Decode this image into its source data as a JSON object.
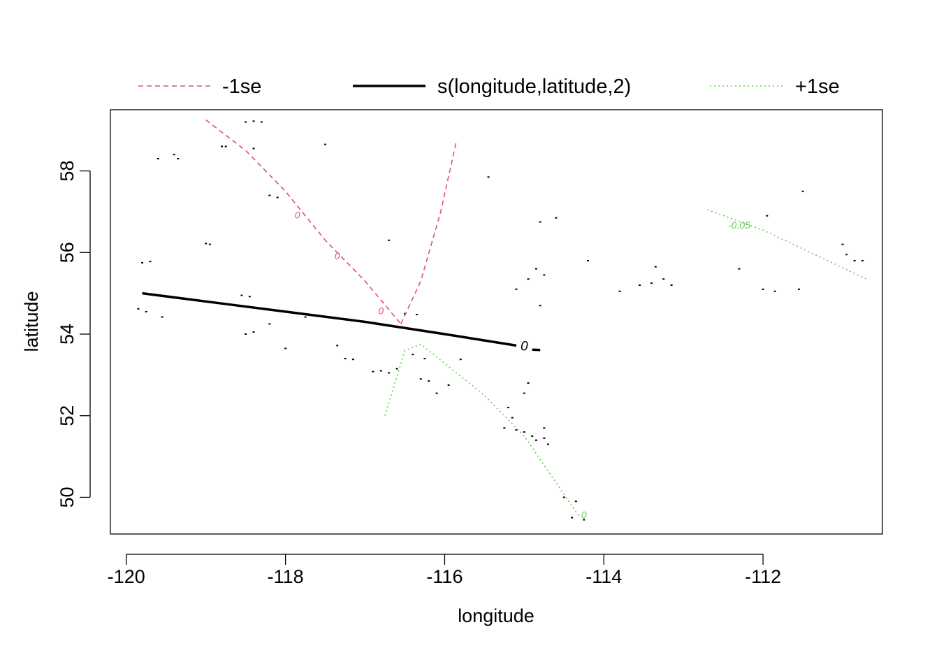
{
  "chart_data": {
    "type": "contour",
    "title": "",
    "xlabel": "longitude",
    "ylabel": "latitude",
    "xlim": [
      -120.2,
      -110.5
    ],
    "ylim": [
      49.1,
      59.5
    ],
    "x_ticks": [
      -120,
      -118,
      -116,
      -114,
      -112
    ],
    "x_tick_labels": [
      "-120",
      "-118",
      "-116",
      "-114",
      "-112"
    ],
    "y_ticks": [
      50,
      52,
      54,
      56,
      58
    ],
    "y_tick_labels": [
      "50",
      "52",
      "54",
      "56",
      "58"
    ],
    "legend": {
      "position": "top",
      "entries": [
        {
          "label": "-1se",
          "color": "#DF536B",
          "dash": "dashed"
        },
        {
          "label": "s(longitude,latitude,2)",
          "color": "#000000",
          "dash": "solid"
        },
        {
          "label": "+1se",
          "color": "#61D04F",
          "dash": "dotted"
        }
      ]
    },
    "series": [
      {
        "name": "-1se",
        "color": "#DF536B",
        "dash": "dashed",
        "lines": [
          {
            "points": [
              [
                -119.0,
                59.25
              ],
              [
                -118.5,
                58.5
              ],
              [
                -118.0,
                57.5
              ],
              [
                -117.5,
                56.3
              ],
              [
                -117.0,
                55.3
              ],
              [
                -116.55,
                54.25
              ]
            ],
            "level_labels": [
              {
                "label": "0",
                "x": -117.85,
                "y": 56.9
              },
              {
                "label": "0",
                "x": -117.35,
                "y": 55.9
              },
              {
                "label": "0",
                "x": -116.8,
                "y": 54.55
              }
            ]
          },
          {
            "points": [
              [
                -116.55,
                54.25
              ],
              [
                -116.3,
                55.3
              ],
              [
                -116.05,
                57.0
              ],
              [
                -115.85,
                58.75
              ]
            ],
            "level_labels": []
          },
          {
            "points": [
              [
                -116.0,
                55.3
              ]
            ],
            "level_labels": []
          }
        ]
      },
      {
        "name": "s(longitude,latitude,2)",
        "color": "#000000",
        "dash": "solid",
        "lines": [
          {
            "points": [
              [
                -119.8,
                55.0
              ],
              [
                -119.0,
                54.8
              ],
              [
                -118.0,
                54.55
              ],
              [
                -117.0,
                54.3
              ],
              [
                -116.0,
                54.0
              ],
              [
                -115.1,
                53.72
              ]
            ],
            "level_labels": [
              {
                "label": "0",
                "x": -115.0,
                "y": 53.68
              }
            ]
          },
          {
            "points": [
              [
                -114.9,
                53.62
              ],
              [
                -114.8,
                53.61
              ]
            ],
            "level_labels": []
          }
        ]
      },
      {
        "name": "+1se",
        "color": "#61D04F",
        "dash": "dotted",
        "lines": [
          {
            "points": [
              [
                -116.75,
                52.0
              ],
              [
                -116.5,
                53.6
              ],
              [
                -116.3,
                53.75
              ],
              [
                -115.5,
                52.5
              ],
              [
                -115.0,
                51.5
              ],
              [
                -114.3,
                49.5
              ]
            ],
            "level_labels": [
              {
                "label": "0",
                "x": -114.25,
                "y": 49.55
              }
            ]
          },
          {
            "points": [
              [
                -112.7,
                57.05
              ],
              [
                -112.0,
                56.55
              ],
              [
                -110.7,
                55.35
              ]
            ],
            "level_labels": [
              {
                "label": "-0.05",
                "x": -112.3,
                "y": 56.65
              }
            ]
          }
        ]
      }
    ],
    "points": [
      [
        -119.8,
        55.75
      ],
      [
        -119.7,
        55.78
      ],
      [
        -119.85,
        54.62
      ],
      [
        -119.75,
        54.55
      ],
      [
        -119.55,
        54.42
      ],
      [
        -119.6,
        58.3
      ],
      [
        -119.4,
        58.4
      ],
      [
        -119.35,
        58.3
      ],
      [
        -119.0,
        56.22
      ],
      [
        -118.95,
        56.2
      ],
      [
        -118.75,
        58.6
      ],
      [
        -118.8,
        58.6
      ],
      [
        -118.5,
        59.2
      ],
      [
        -118.4,
        59.22
      ],
      [
        -118.3,
        59.2
      ],
      [
        -118.4,
        58.55
      ],
      [
        -118.2,
        57.4
      ],
      [
        -118.1,
        57.35
      ],
      [
        -117.5,
        58.65
      ],
      [
        -118.55,
        54.95
      ],
      [
        -118.45,
        54.92
      ],
      [
        -118.5,
        54.0
      ],
      [
        -118.4,
        54.05
      ],
      [
        -118.2,
        54.25
      ],
      [
        -118.0,
        53.65
      ],
      [
        -117.75,
        54.42
      ],
      [
        -117.35,
        53.72
      ],
      [
        -117.25,
        53.4
      ],
      [
        -117.15,
        53.38
      ],
      [
        -116.8,
        53.1
      ],
      [
        -116.9,
        53.08
      ],
      [
        -116.7,
        53.05
      ],
      [
        -116.6,
        53.15
      ],
      [
        -116.7,
        56.3
      ],
      [
        -116.5,
        54.5
      ],
      [
        -116.35,
        54.48
      ],
      [
        -116.4,
        53.5
      ],
      [
        -116.25,
        53.4
      ],
      [
        -116.3,
        52.9
      ],
      [
        -116.2,
        52.85
      ],
      [
        -116.1,
        52.55
      ],
      [
        -115.95,
        52.75
      ],
      [
        -115.8,
        53.38
      ],
      [
        -115.45,
        57.85
      ],
      [
        -115.2,
        52.2
      ],
      [
        -115.15,
        51.95
      ],
      [
        -115.25,
        51.7
      ],
      [
        -115.1,
        51.65
      ],
      [
        -115.0,
        51.6
      ],
      [
        -114.9,
        51.5
      ],
      [
        -114.85,
        51.4
      ],
      [
        -114.75,
        51.45
      ],
      [
        -114.7,
        51.3
      ],
      [
        -114.75,
        51.7
      ],
      [
        -115.0,
        52.55
      ],
      [
        -114.95,
        52.8
      ],
      [
        -114.75,
        55.45
      ],
      [
        -114.8,
        56.75
      ],
      [
        -114.6,
        56.85
      ],
      [
        -114.5,
        50.0
      ],
      [
        -114.35,
        49.9
      ],
      [
        -114.4,
        49.5
      ],
      [
        -114.25,
        49.45
      ],
      [
        -114.85,
        55.6
      ],
      [
        -114.95,
        55.35
      ],
      [
        -115.1,
        55.1
      ],
      [
        -114.8,
        54.7
      ],
      [
        -114.2,
        55.8
      ],
      [
        -113.8,
        55.05
      ],
      [
        -113.55,
        55.2
      ],
      [
        -113.4,
        55.25
      ],
      [
        -113.35,
        55.65
      ],
      [
        -113.25,
        55.35
      ],
      [
        -113.15,
        55.2
      ],
      [
        -112.3,
        55.6
      ],
      [
        -112.0,
        55.1
      ],
      [
        -111.85,
        55.05
      ],
      [
        -111.55,
        55.1
      ],
      [
        -111.95,
        56.9
      ],
      [
        -111.5,
        57.5
      ],
      [
        -111.0,
        56.2
      ],
      [
        -110.95,
        55.95
      ],
      [
        -110.85,
        55.8
      ],
      [
        -110.75,
        55.8
      ]
    ]
  }
}
